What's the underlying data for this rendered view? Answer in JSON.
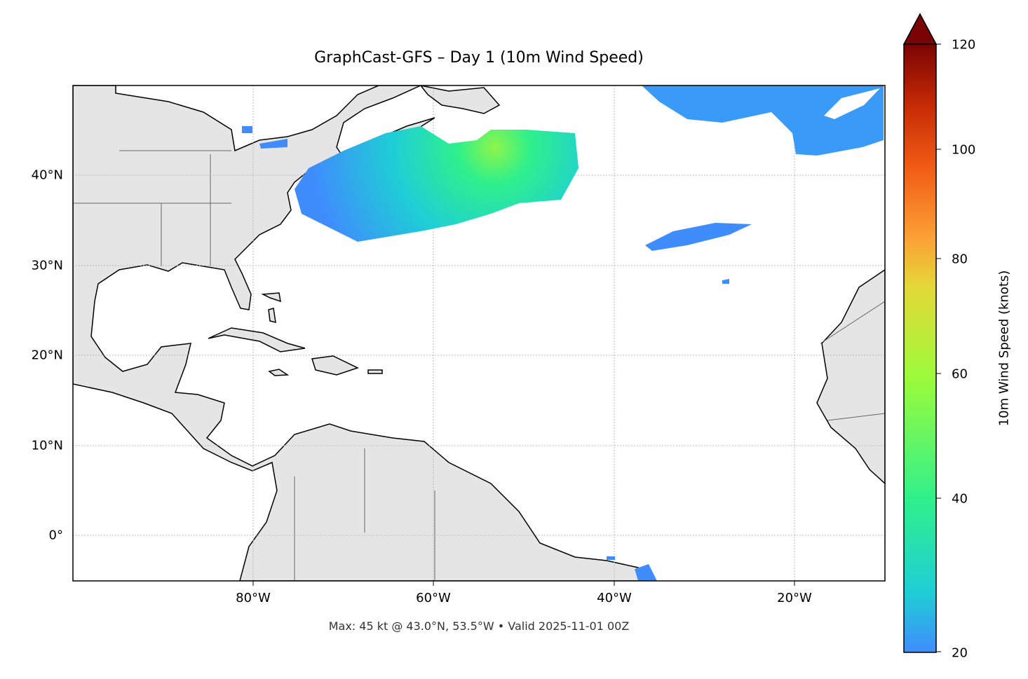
{
  "title": "GraphCast-GFS – Day 1 (10m Wind Speed)",
  "footer": "Max: 45 kt @ 43.0°N, 53.5°W • Valid 2025-11-01 00Z",
  "map": {
    "projection": "PlateCarree",
    "extent_lon": [
      -100,
      -10
    ],
    "extent_lat": [
      -5,
      50
    ],
    "land_color": "#e5e5e5",
    "coastline_color": "#000000",
    "border_color": "#666666",
    "gridlines": true,
    "x_ticks": [
      "80°W",
      "60°W",
      "40°W",
      "20°W"
    ],
    "y_ticks": [
      "40°N",
      "30°N",
      "20°N",
      "10°N",
      "0°"
    ]
  },
  "colorbar": {
    "label": "10m Wind Speed (knots)",
    "ticks": [
      "20",
      "40",
      "60",
      "80",
      "100",
      "120"
    ],
    "range": [
      20,
      120
    ],
    "extend": "max",
    "colormap": "turbo",
    "colors": [
      "#3f8dfc",
      "#1ecfd5",
      "#2ef08c",
      "#9bfb3a",
      "#e4d838",
      "#fca235",
      "#f05a14",
      "#c52a05",
      "#7a0403"
    ]
  },
  "max_point": {
    "value_kt": 45,
    "lat": 43.0,
    "lon": -53.5
  }
}
